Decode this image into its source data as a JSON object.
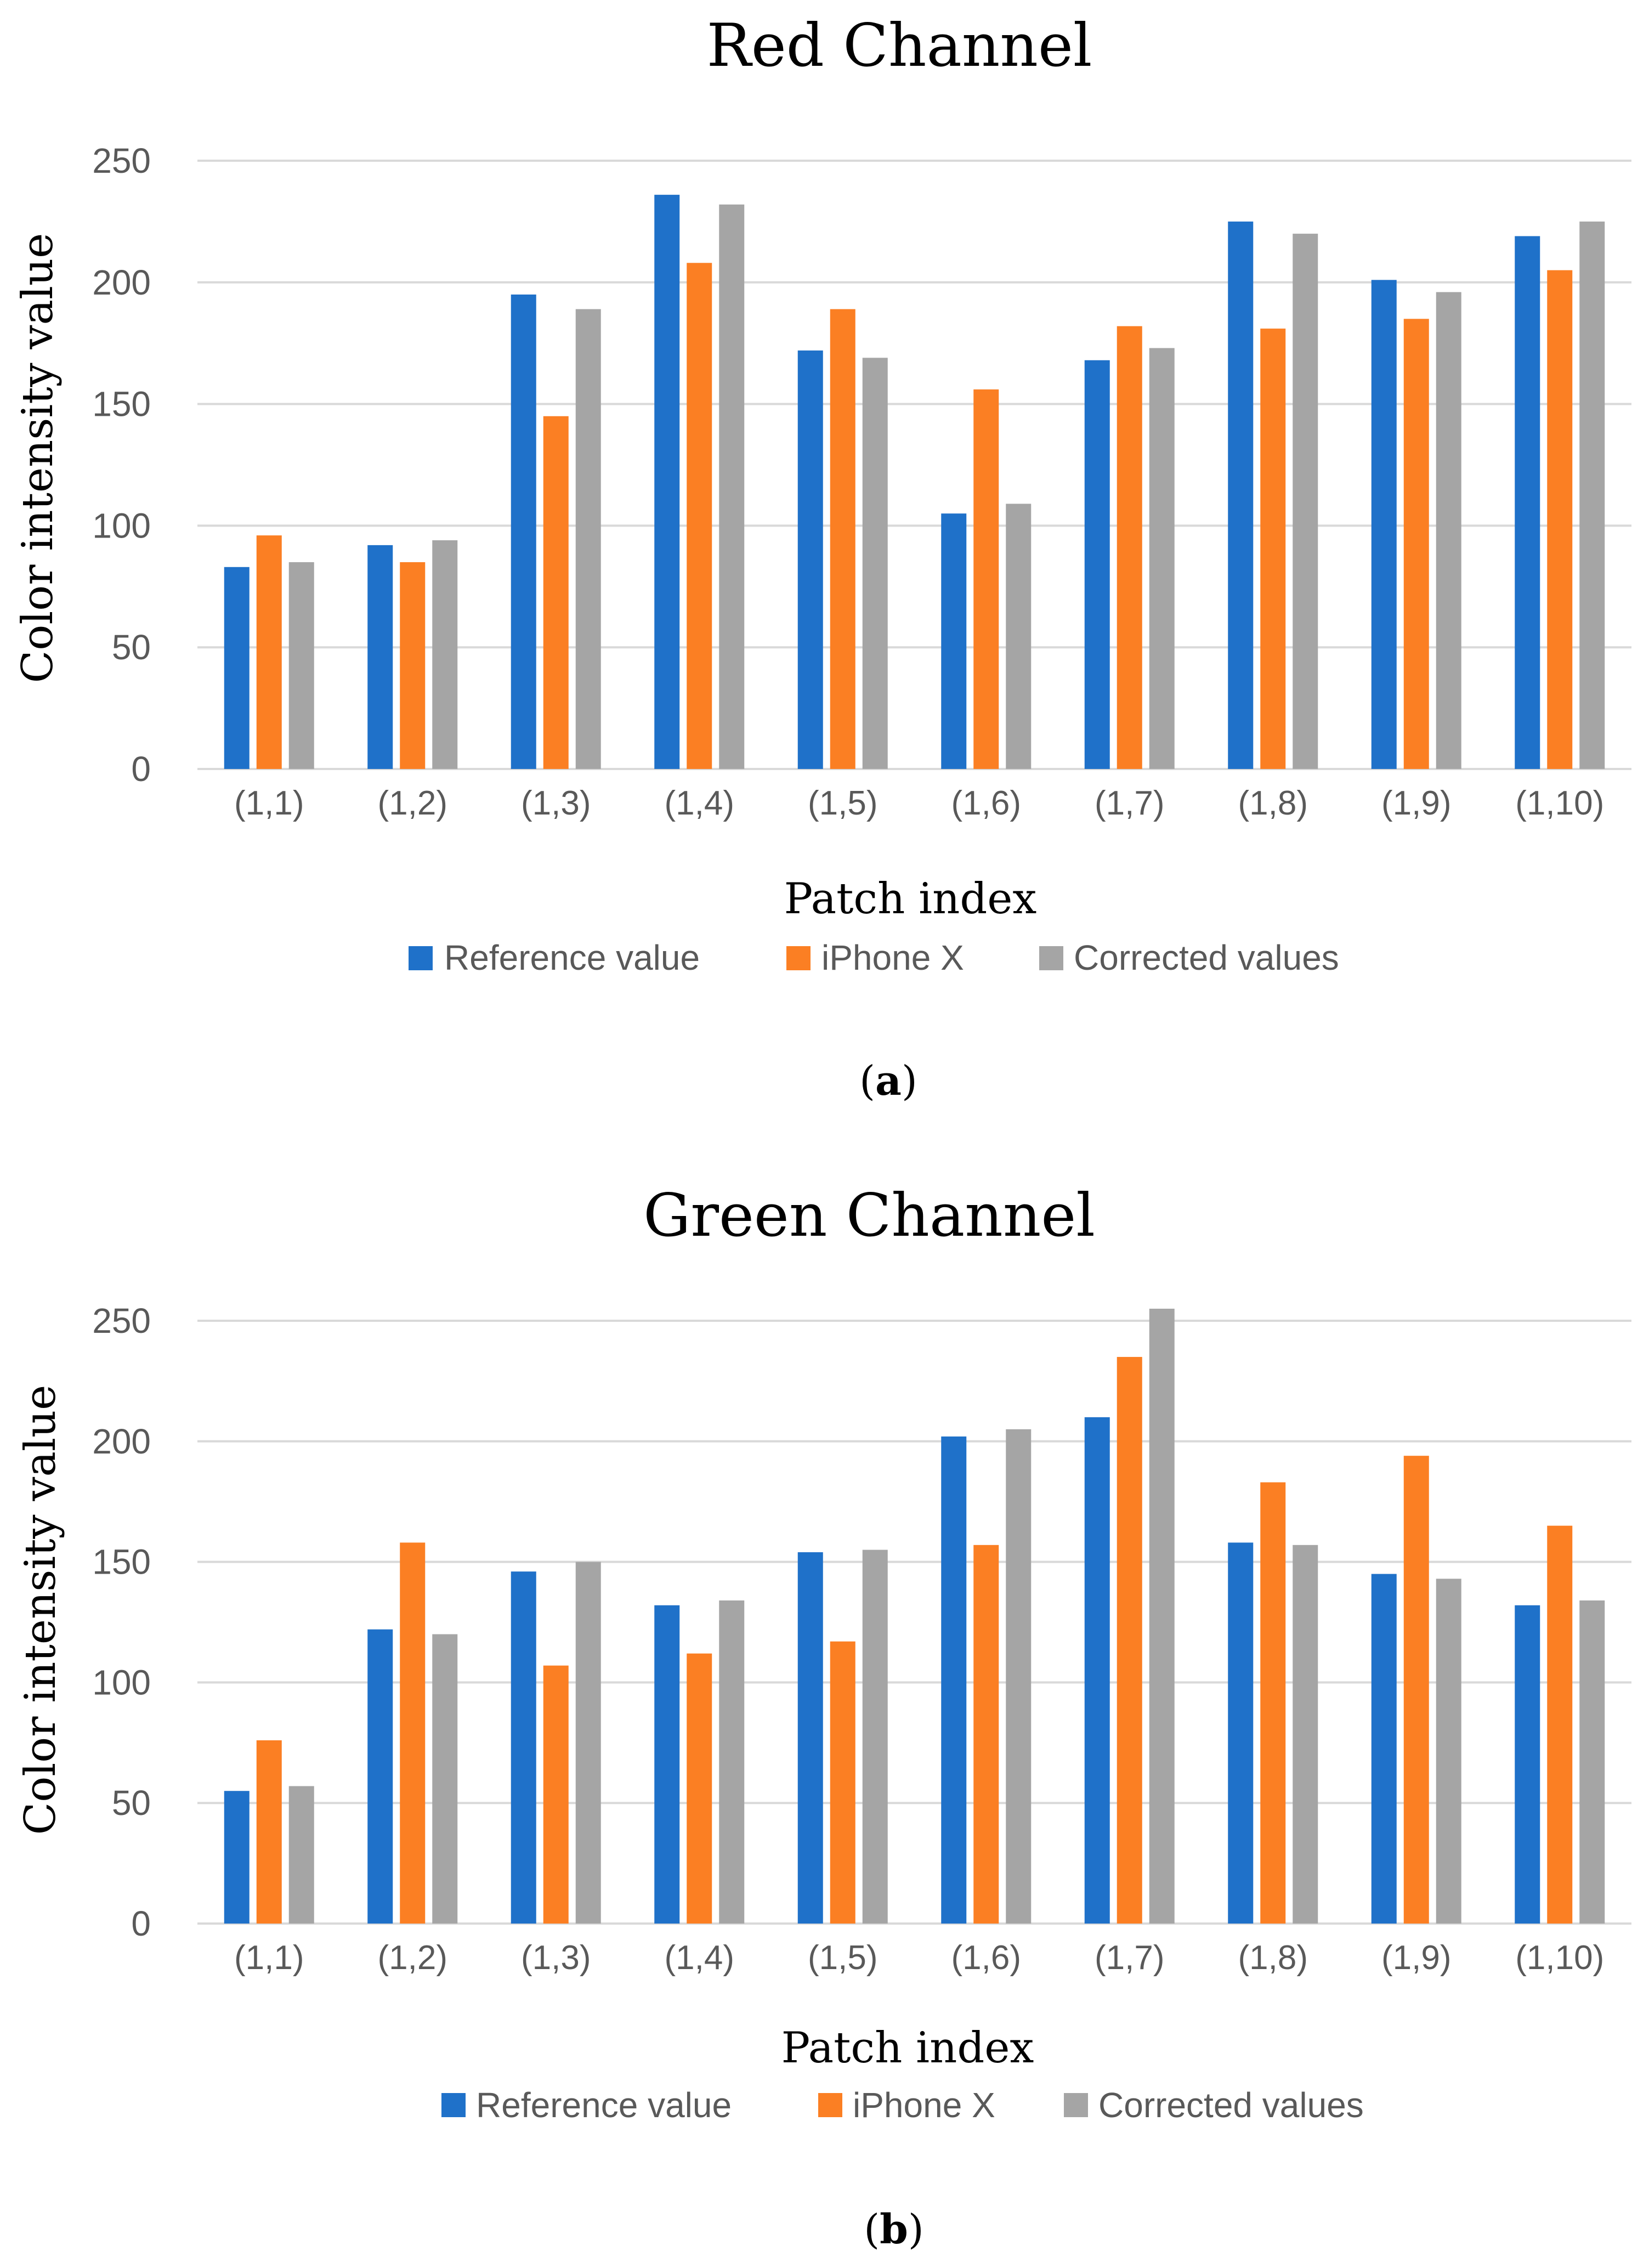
{
  "colors": {
    "reference": "#1f71c9",
    "iphone": "#fb7f23",
    "corrected": "#a5a5a5",
    "grid": "#d9d9d9",
    "tick_text": "#595959",
    "title_text": "#000000"
  },
  "chart_data": [
    {
      "type": "bar",
      "panel_label": "(a)",
      "panel_letter": "a",
      "title": "Red Channel",
      "xlabel": "Patch index",
      "ylabel": "Color intensity value",
      "ylim": [
        0,
        250
      ],
      "yticks": [
        0,
        50,
        100,
        150,
        200,
        250
      ],
      "grid": true,
      "legend_position": "bottom",
      "categories": [
        "(1,1)",
        "(1,2)",
        "(1,3)",
        "(1,4)",
        "(1,5)",
        "(1,6)",
        "(1,7)",
        "(1,8)",
        "(1,9)",
        "(1,10)"
      ],
      "series": [
        {
          "name": "Reference value",
          "color_key": "reference",
          "values": [
            83,
            92,
            195,
            236,
            172,
            105,
            168,
            225,
            201,
            219
          ]
        },
        {
          "name": "iPhone X",
          "color_key": "iphone",
          "values": [
            96,
            85,
            145,
            208,
            189,
            156,
            182,
            181,
            185,
            205
          ]
        },
        {
          "name": "Corrected values",
          "color_key": "corrected",
          "values": [
            85,
            94,
            189,
            232,
            169,
            109,
            173,
            220,
            196,
            225
          ]
        }
      ]
    },
    {
      "type": "bar",
      "panel_label": "(b)",
      "panel_letter": "b",
      "title": "Green Channel",
      "xlabel": "Patch index",
      "ylabel": "Color intensity value",
      "ylim": [
        0,
        250
      ],
      "yticks": [
        0,
        50,
        100,
        150,
        200,
        250
      ],
      "grid": true,
      "legend_position": "bottom",
      "categories": [
        "(1,1)",
        "(1,2)",
        "(1,3)",
        "(1,4)",
        "(1,5)",
        "(1,6)",
        "(1,7)",
        "(1,8)",
        "(1,9)",
        "(1,10)"
      ],
      "series": [
        {
          "name": "Reference value",
          "color_key": "reference",
          "values": [
            55,
            122,
            146,
            132,
            154,
            202,
            210,
            158,
            145,
            132
          ]
        },
        {
          "name": "iPhone X",
          "color_key": "iphone",
          "values": [
            76,
            158,
            107,
            112,
            117,
            157,
            235,
            183,
            194,
            165
          ]
        },
        {
          "name": "Corrected values",
          "color_key": "corrected",
          "values": [
            57,
            120,
            150,
            134,
            155,
            205,
            255,
            157,
            143,
            134
          ]
        }
      ]
    }
  ]
}
